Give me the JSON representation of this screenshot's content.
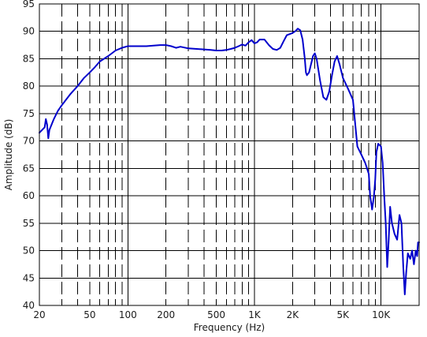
{
  "chart_data": {
    "type": "line",
    "xlabel": "Frequency (Hz)",
    "ylabel": "Amplitude (dB)",
    "x_scale": "log",
    "xlim": [
      20,
      20000
    ],
    "ylim": [
      40,
      95
    ],
    "grid": true,
    "colors": {
      "line": "#0000cc",
      "grid": "#000000",
      "frame": "#000000"
    },
    "y_ticks": [
      40,
      45,
      50,
      55,
      60,
      65,
      70,
      75,
      80,
      85,
      90,
      95
    ],
    "x_tick_labels": [
      {
        "value": 20,
        "label": "20"
      },
      {
        "value": 50,
        "label": "50"
      },
      {
        "value": 100,
        "label": "100"
      },
      {
        "value": 200,
        "label": "200"
      },
      {
        "value": 500,
        "label": "500"
      },
      {
        "value": 1000,
        "label": "1K"
      },
      {
        "value": 2000,
        "label": "2K"
      },
      {
        "value": 5000,
        "label": "5K"
      },
      {
        "value": 10000,
        "label": "10K"
      }
    ],
    "series": [
      {
        "points": [
          [
            20,
            71.5
          ],
          [
            21,
            72
          ],
          [
            22,
            72.5
          ],
          [
            22.5,
            74
          ],
          [
            23,
            73
          ],
          [
            23.5,
            70.5
          ],
          [
            24,
            72
          ],
          [
            26,
            74
          ],
          [
            28,
            75.5
          ],
          [
            30,
            76.5
          ],
          [
            35,
            78.5
          ],
          [
            40,
            80
          ],
          [
            45,
            81.5
          ],
          [
            50,
            82.5
          ],
          [
            55,
            83.5
          ],
          [
            60,
            84.5
          ],
          [
            70,
            85.5
          ],
          [
            80,
            86.5
          ],
          [
            90,
            87
          ],
          [
            100,
            87.3
          ],
          [
            120,
            87.3
          ],
          [
            140,
            87.3
          ],
          [
            160,
            87.4
          ],
          [
            180,
            87.5
          ],
          [
            200,
            87.5
          ],
          [
            220,
            87.3
          ],
          [
            240,
            87
          ],
          [
            260,
            87.2
          ],
          [
            300,
            86.9
          ],
          [
            350,
            86.8
          ],
          [
            400,
            86.7
          ],
          [
            450,
            86.6
          ],
          [
            500,
            86.5
          ],
          [
            550,
            86.5
          ],
          [
            600,
            86.6
          ],
          [
            650,
            86.8
          ],
          [
            700,
            87
          ],
          [
            750,
            87.3
          ],
          [
            800,
            87.6
          ],
          [
            850,
            87.4
          ],
          [
            900,
            88
          ],
          [
            950,
            88.4
          ],
          [
            1000,
            87.8
          ],
          [
            1050,
            88
          ],
          [
            1100,
            88.5
          ],
          [
            1200,
            88.5
          ],
          [
            1300,
            87.5
          ],
          [
            1400,
            86.8
          ],
          [
            1500,
            86.6
          ],
          [
            1600,
            87
          ],
          [
            1700,
            88.2
          ],
          [
            1800,
            89.3
          ],
          [
            1900,
            89.5
          ],
          [
            2000,
            89.7
          ],
          [
            2100,
            90
          ],
          [
            2200,
            90.5
          ],
          [
            2300,
            90.2
          ],
          [
            2400,
            88.5
          ],
          [
            2500,
            85
          ],
          [
            2550,
            82.5
          ],
          [
            2600,
            82
          ],
          [
            2700,
            82.5
          ],
          [
            2800,
            84
          ],
          [
            2900,
            85.5
          ],
          [
            3000,
            86
          ],
          [
            3100,
            85
          ],
          [
            3300,
            81
          ],
          [
            3500,
            78
          ],
          [
            3700,
            77.5
          ],
          [
            3900,
            79
          ],
          [
            4100,
            82
          ],
          [
            4300,
            84.5
          ],
          [
            4500,
            85.5
          ],
          [
            4700,
            84
          ],
          [
            5000,
            81.5
          ],
          [
            5500,
            79.5
          ],
          [
            6000,
            77.5
          ],
          [
            6200,
            74
          ],
          [
            6500,
            69
          ],
          [
            7000,
            67.5
          ],
          [
            7500,
            66
          ],
          [
            8000,
            64
          ],
          [
            8200,
            60
          ],
          [
            8500,
            57.5
          ],
          [
            8800,
            60
          ],
          [
            9000,
            63
          ],
          [
            9200,
            68
          ],
          [
            9500,
            69.5
          ],
          [
            10000,
            69
          ],
          [
            10300,
            66
          ],
          [
            10600,
            60
          ],
          [
            10900,
            55
          ],
          [
            11200,
            47
          ],
          [
            11500,
            52
          ],
          [
            11800,
            58
          ],
          [
            12200,
            55
          ],
          [
            12800,
            53
          ],
          [
            13400,
            52
          ],
          [
            14000,
            56.5
          ],
          [
            14500,
            55
          ],
          [
            15000,
            47
          ],
          [
            15400,
            42
          ],
          [
            15800,
            46
          ],
          [
            16300,
            49.5
          ],
          [
            17000,
            48.5
          ],
          [
            17600,
            50
          ],
          [
            18200,
            47.5
          ],
          [
            18800,
            50
          ],
          [
            19300,
            49
          ],
          [
            19600,
            51.5
          ],
          [
            20000,
            51.5
          ]
        ]
      }
    ]
  }
}
